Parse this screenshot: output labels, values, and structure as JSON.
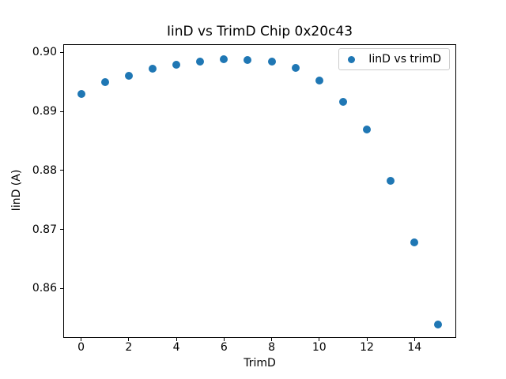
{
  "chart_data": {
    "type": "scatter",
    "title": "IinD vs TrimD Chip 0x20c43",
    "xlabel": "TrimD",
    "ylabel": "IinD (A)",
    "legend": {
      "label": "IinD vs trimD",
      "position": "upper right"
    },
    "series": [
      {
        "name": "IinD vs trimD",
        "x": [
          0,
          1,
          2,
          3,
          4,
          5,
          6,
          7,
          8,
          9,
          10,
          11,
          12,
          13,
          14,
          15
        ],
        "y": [
          0.893,
          0.895,
          0.8961,
          0.8972,
          0.8979,
          0.8985,
          0.8989,
          0.8987,
          0.8985,
          0.8974,
          0.8953,
          0.8916,
          0.887,
          0.8783,
          0.8678,
          0.8539
        ]
      }
    ],
    "xlim": [
      -0.75,
      15.75
    ],
    "ylim": [
      0.8516,
      0.9014
    ],
    "xticks": [
      0,
      2,
      4,
      6,
      8,
      10,
      12,
      14
    ],
    "yticks": [
      0.86,
      0.87,
      0.88,
      0.89,
      0.9
    ],
    "grid": false,
    "marker_color": "#1f77b4",
    "text_color": "#000000",
    "legend_border_color": "#cccccc"
  }
}
